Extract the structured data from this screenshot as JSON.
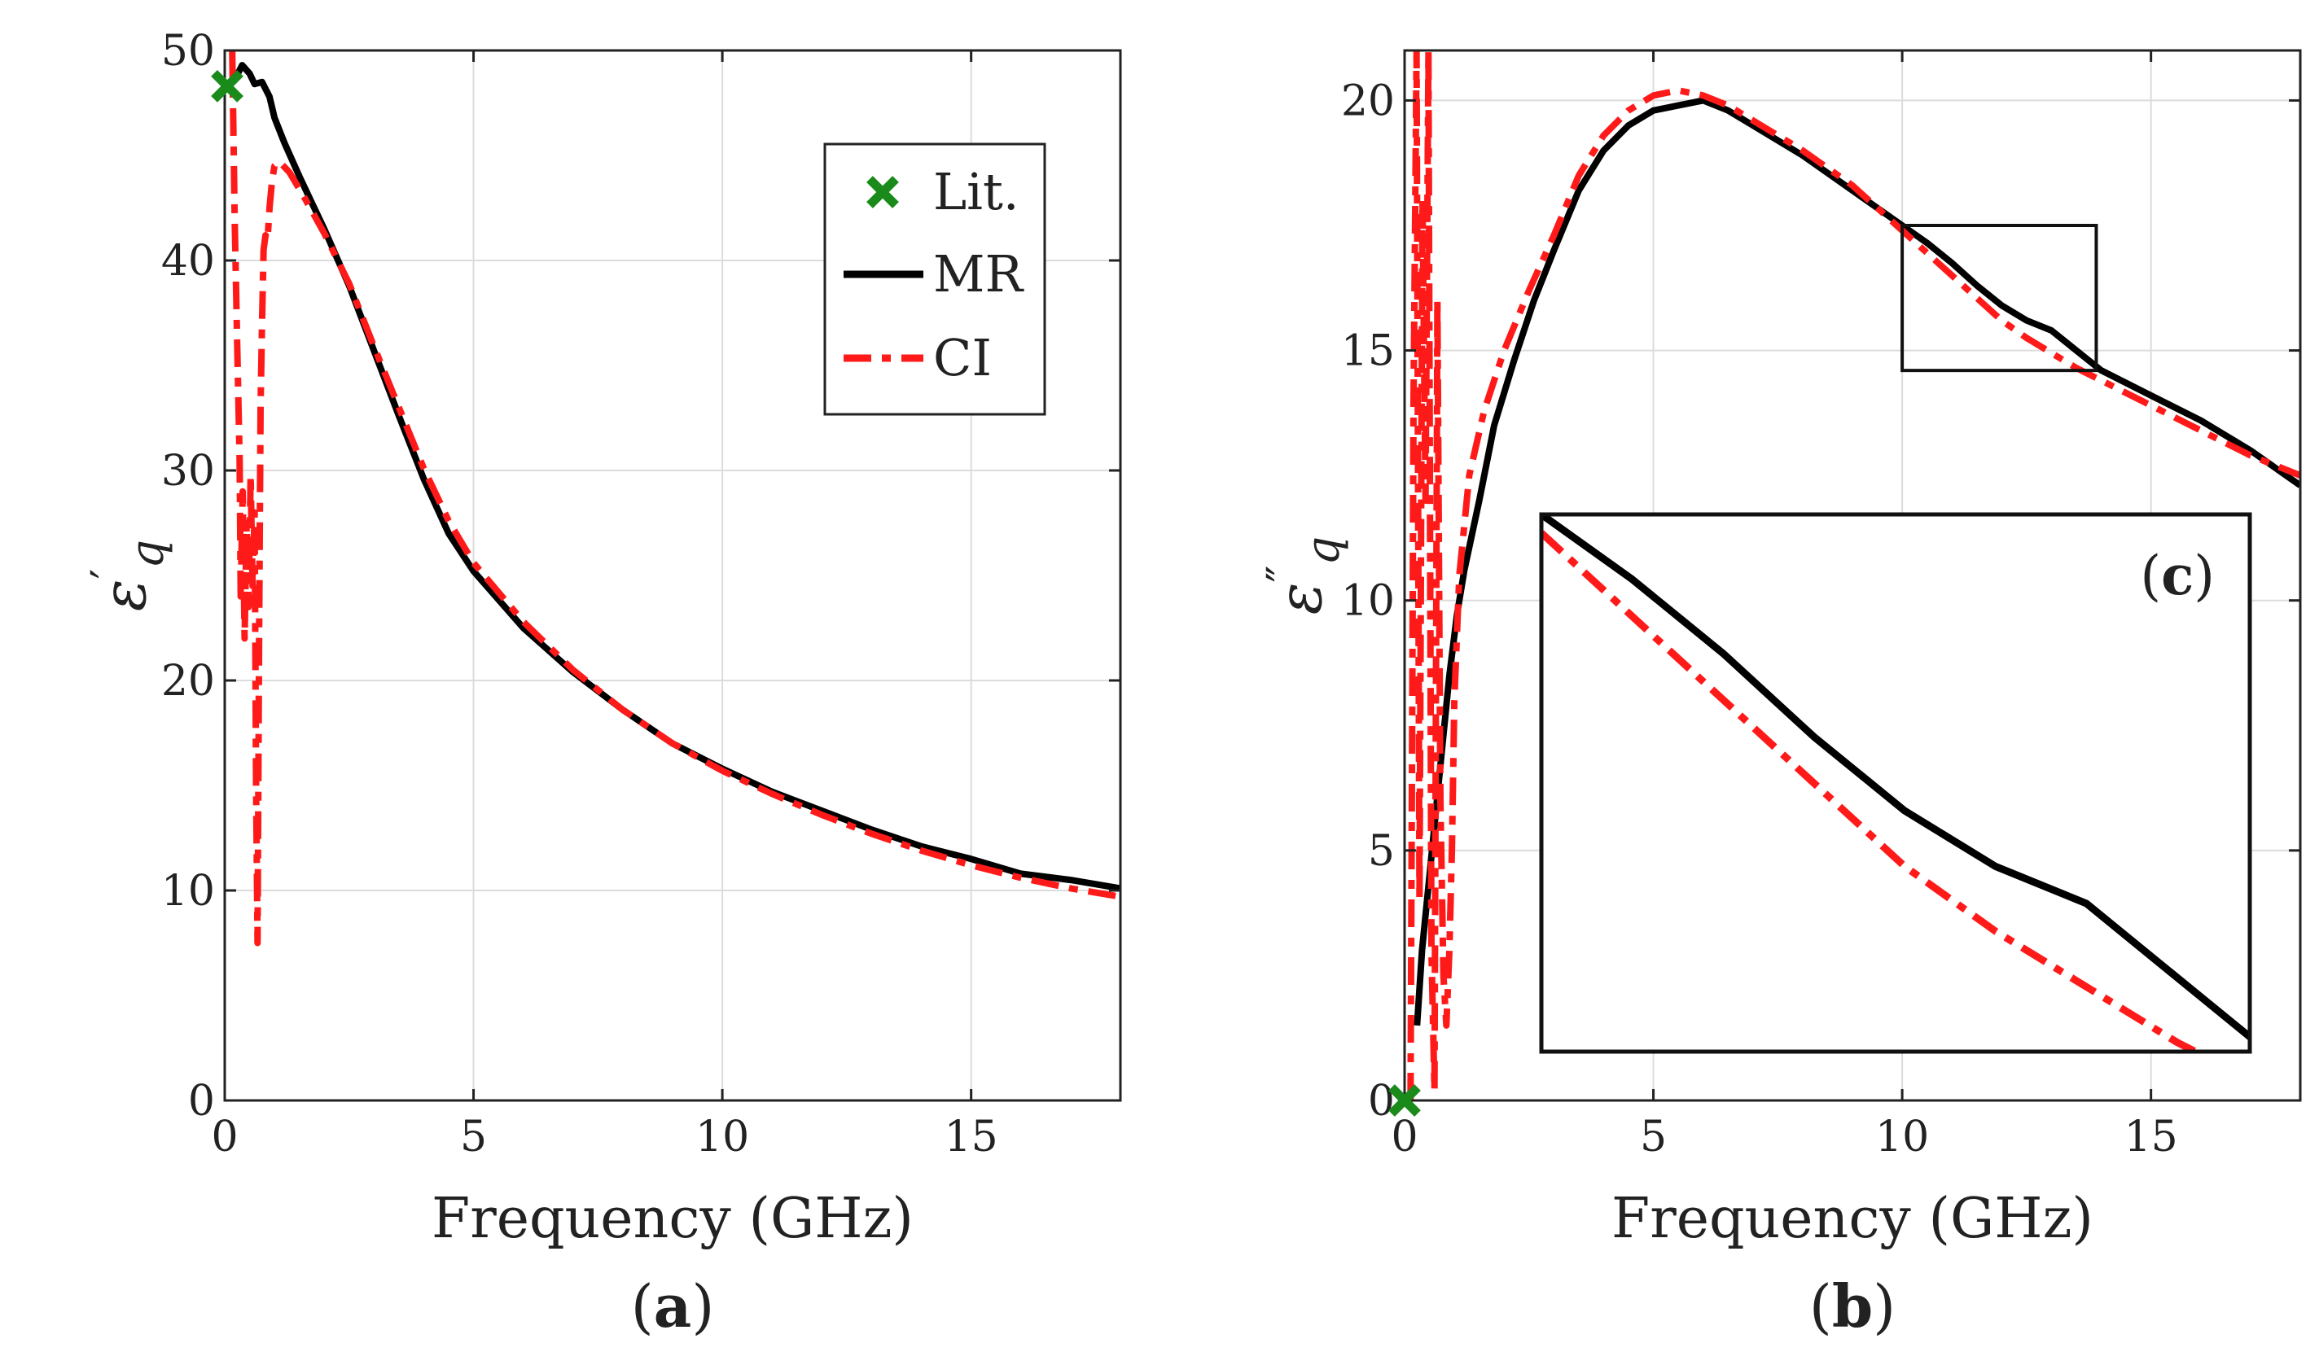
{
  "chart_data": [
    {
      "type": "line",
      "panel_label": "(a)",
      "panel_letter": "a",
      "xlabel": "Frequency (GHz)",
      "ylabel": "ε'q",
      "ylabel_main": "ε",
      "ylabel_sup": "′",
      "ylabel_sub": "q",
      "xlim": [
        0,
        18
      ],
      "ylim": [
        0,
        50
      ],
      "xticks": [
        0,
        5,
        10,
        15
      ],
      "yticks": [
        0,
        10,
        20,
        30,
        40,
        50
      ],
      "grid": true,
      "legend": {
        "placement": "top-right",
        "entries": [
          {
            "label": "Lit.",
            "marker": "x",
            "color": "#1a8a1a"
          },
          {
            "label": "MR",
            "style": "solid",
            "color": "#000000"
          },
          {
            "label": "CI",
            "style": "dash-dot",
            "color": "#ff1a1a"
          }
        ]
      },
      "series": [
        {
          "name": "Lit.",
          "kind": "marker",
          "color": "#1a8a1a",
          "x": [
            0.05
          ],
          "y": [
            48.3
          ]
        },
        {
          "name": "MR",
          "kind": "line",
          "color": "#000000",
          "dash": "solid",
          "x": [
            0.05,
            0.2,
            0.35,
            0.5,
            0.6,
            0.75,
            0.9,
            1.0,
            1.2,
            1.5,
            2.0,
            2.5,
            3.0,
            3.5,
            4.0,
            4.5,
            5.0,
            6.0,
            7.0,
            8.0,
            9.0,
            10.0,
            11.0,
            12.0,
            13.0,
            14.0,
            15.0,
            16.0,
            17.0,
            18.0
          ],
          "y": [
            48.3,
            48.6,
            49.3,
            48.9,
            48.4,
            48.5,
            47.8,
            46.8,
            45.6,
            44.0,
            41.5,
            38.8,
            35.7,
            32.6,
            29.6,
            27.0,
            25.2,
            22.5,
            20.4,
            18.6,
            17.0,
            15.8,
            14.7,
            13.8,
            12.9,
            12.1,
            11.5,
            10.8,
            10.5,
            10.1
          ]
        },
        {
          "name": "CI",
          "kind": "line",
          "color": "#ff1a1a",
          "dash": "dash-dot",
          "x": [
            0.15,
            0.2,
            0.25,
            0.3,
            0.32,
            0.36,
            0.4,
            0.44,
            0.48,
            0.52,
            0.56,
            0.6,
            0.63,
            0.66,
            0.69,
            0.72,
            0.75,
            0.78,
            0.82,
            0.86,
            0.9,
            0.95,
            1.0,
            1.1,
            1.3,
            1.6,
            2.0,
            2.5,
            3.0,
            3.5,
            4.0,
            4.5,
            5.0,
            6.0,
            7.0,
            8.0,
            9.0,
            10.0,
            11.0,
            12.0,
            13.0,
            14.0,
            15.0,
            16.0,
            17.0,
            18.0
          ],
          "y": [
            50.0,
            42.0,
            36.0,
            30.5,
            24.0,
            29.0,
            22.0,
            27.5,
            23.5,
            29.8,
            24.5,
            28.0,
            15.0,
            7.5,
            22.0,
            33.0,
            37.0,
            40.5,
            41.2,
            41.0,
            42.5,
            43.8,
            44.5,
            44.7,
            44.2,
            43.0,
            41.3,
            38.9,
            35.9,
            33.0,
            30.1,
            27.6,
            25.6,
            22.8,
            20.5,
            18.6,
            17.0,
            15.7,
            14.6,
            13.6,
            12.7,
            11.9,
            11.2,
            10.6,
            10.1,
            9.7
          ]
        }
      ]
    },
    {
      "type": "line",
      "panel_label": "(b)",
      "panel_letter": "b",
      "xlabel": "Frequency (GHz)",
      "ylabel": "ε''q",
      "ylabel_main": "ε",
      "ylabel_sup": "″",
      "ylabel_sub": "q",
      "xlim": [
        0,
        18
      ],
      "ylim": [
        0,
        21
      ],
      "xticks": [
        0,
        5,
        10,
        15
      ],
      "yticks": [
        0,
        5,
        10,
        15,
        20
      ],
      "grid": true,
      "zoom_box": {
        "xlim": [
          10,
          13.9
        ],
        "ylim": [
          14.6,
          17.5
        ]
      },
      "inset": {
        "label": "(c)",
        "letter": "c",
        "placement": "lower-center"
      },
      "series": [
        {
          "name": "Lit.",
          "kind": "marker",
          "color": "#1a8a1a",
          "x": [
            0.0
          ],
          "y": [
            0.0
          ]
        },
        {
          "name": "MR",
          "kind": "line",
          "color": "#000000",
          "dash": "solid",
          "x": [
            0.25,
            0.35,
            0.5,
            0.6,
            0.75,
            0.9,
            1.05,
            1.2,
            1.5,
            1.8,
            2.2,
            2.6,
            3.0,
            3.5,
            4.0,
            4.5,
            5.0,
            5.5,
            6.0,
            6.5,
            7.0,
            8.0,
            9.0,
            10.0,
            10.5,
            11.0,
            11.5,
            12.0,
            12.5,
            13.0,
            13.5,
            14.0,
            15.0,
            16.0,
            17.0,
            18.0
          ],
          "y": [
            1.5,
            3.0,
            4.5,
            5.5,
            7.0,
            8.5,
            9.7,
            10.6,
            12.0,
            13.5,
            14.8,
            16.0,
            17.0,
            18.2,
            19.0,
            19.5,
            19.8,
            19.9,
            20.0,
            19.8,
            19.5,
            18.9,
            18.2,
            17.5,
            17.15,
            16.75,
            16.3,
            15.9,
            15.6,
            15.4,
            15.0,
            14.6,
            14.1,
            13.6,
            13.0,
            12.3
          ]
        },
        {
          "name": "CI",
          "kind": "line",
          "color": "#ff1a1a",
          "dash": "dash-dot",
          "x": [
            0.12,
            0.18,
            0.24,
            0.3,
            0.36,
            0.42,
            0.48,
            0.54,
            0.6,
            0.66,
            0.72,
            0.78,
            0.84,
            0.9,
            0.95,
            1.0,
            1.1,
            1.3,
            1.6,
            2.0,
            2.5,
            3.0,
            3.5,
            4.0,
            4.5,
            5.0,
            5.5,
            6.0,
            6.5,
            7.0,
            8.0,
            9.0,
            10.0,
            10.5,
            11.0,
            11.5,
            12.0,
            12.5,
            13.0,
            13.5,
            14.0,
            15.0,
            16.0,
            17.0,
            18.0
          ],
          "y": [
            0.0,
            14.0,
            21.0,
            4.0,
            18.0,
            12.0,
            21.0,
            3.0,
            0.2,
            16.0,
            6.0,
            2.5,
            1.5,
            3.0,
            5.0,
            8.0,
            10.5,
            12.5,
            13.8,
            15.0,
            16.2,
            17.3,
            18.5,
            19.3,
            19.8,
            20.1,
            20.2,
            20.1,
            19.9,
            19.6,
            19.0,
            18.3,
            17.4,
            16.95,
            16.5,
            16.05,
            15.6,
            15.25,
            14.95,
            14.65,
            14.4,
            13.9,
            13.4,
            12.9,
            12.5
          ]
        }
      ]
    }
  ]
}
